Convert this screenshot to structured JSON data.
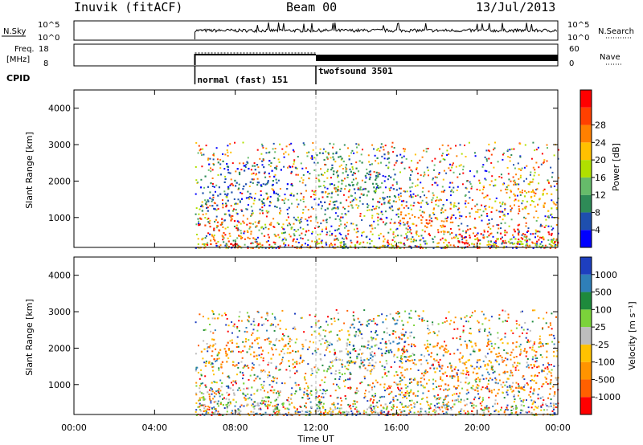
{
  "header": {
    "station": "Inuvik (fitACF)",
    "beam": "Beam 00",
    "date": "13/Jul/2013"
  },
  "noise_panel": {
    "left_label": "N.Sky",
    "left_ticks": [
      "10^5",
      "10^0"
    ],
    "right_ticks": [
      "10^5",
      "10^0"
    ],
    "right_label": "N.Search"
  },
  "freq_panel": {
    "left_label_line1": "Freq.",
    "left_label_line2": "[MHz]",
    "left_ticks": [
      "18",
      "8"
    ],
    "right_ticks": [
      "60",
      "0"
    ],
    "right_label": "Nave"
  },
  "cpid": {
    "label": "CPID",
    "segments": [
      {
        "name": "normal (fast) 151",
        "start_hour": 6,
        "end_hour": 12
      },
      {
        "name": "twofsound 3501",
        "start_hour": 12,
        "end_hour": 24
      }
    ]
  },
  "time_axis": {
    "label": "Time UT",
    "ticks": [
      "00:00",
      "04:00",
      "08:00",
      "12:00",
      "16:00",
      "20:00",
      "00:00"
    ]
  },
  "colors": {
    "power": [
      "#0000ff",
      "#1e4fae",
      "#2e8b57",
      "#66bb6a",
      "#b0e000",
      "#ffc000",
      "#ff8000",
      "#ff4000",
      "#ff0000"
    ],
    "velocity": [
      "#ff0000",
      "#ff6000",
      "#ff9400",
      "#ffc200",
      "#bdbdbd",
      "#7bd33a",
      "#1e8a3c",
      "#2f7fb8",
      "#1e3fbf"
    ]
  },
  "chart_data": [
    {
      "type": "heatmap",
      "panel": "power",
      "ylabel": "Slant Range [km]",
      "yticks": [
        "1000",
        "2000",
        "3000",
        "4000"
      ],
      "ylim": [
        180,
        4500
      ],
      "xlim_hours": [
        0,
        24
      ],
      "colorbar_label": "Power [dB]",
      "colorbar_ticks": [
        "4",
        "8",
        "12",
        "16",
        "20",
        "24",
        "28"
      ],
      "data_coverage_hours": [
        6,
        24
      ],
      "regions": [
        {
          "t0": 6.1,
          "t1": 8.2,
          "r0": 250,
          "r1": 1100,
          "level": 7
        },
        {
          "t0": 8.0,
          "t1": 10.0,
          "r0": 300,
          "r1": 900,
          "level": 6
        },
        {
          "t0": 6.2,
          "t1": 11.0,
          "r0": 1200,
          "r1": 2600,
          "level": 1
        },
        {
          "t0": 12.0,
          "t1": 16.0,
          "r0": 1200,
          "r1": 2800,
          "level": 2
        },
        {
          "t0": 13.0,
          "t1": 15.5,
          "r0": 1500,
          "r1": 2200,
          "level": 3
        },
        {
          "t0": 16.0,
          "t1": 19.0,
          "r0": 600,
          "r1": 1400,
          "level": 6
        },
        {
          "t0": 19.0,
          "t1": 24.0,
          "r0": 300,
          "r1": 700,
          "level": 8
        },
        {
          "t0": 20.0,
          "t1": 24.0,
          "r0": 1200,
          "r1": 2000,
          "level": 5
        },
        {
          "t0": 12.0,
          "t1": 24.0,
          "r0": 180,
          "r1": 450,
          "level": 4
        }
      ]
    },
    {
      "type": "heatmap",
      "panel": "velocity",
      "ylabel": "Slant Range [km]",
      "yticks": [
        "1000",
        "2000",
        "3000",
        "4000"
      ],
      "ylim": [
        180,
        4500
      ],
      "xlim_hours": [
        0,
        24
      ],
      "colorbar_label": "Velocity [m s⁻¹]",
      "colorbar_ticks": [
        "-1000",
        "-500",
        "-100",
        "-25",
        "25",
        "100",
        "500",
        "1000"
      ],
      "data_coverage_hours": [
        6,
        24
      ],
      "regions": [
        {
          "t0": 6.0,
          "t1": 9.5,
          "r0": 250,
          "r1": 1100,
          "level": 4
        },
        {
          "t0": 9.0,
          "t1": 12.5,
          "r0": 300,
          "r1": 900,
          "level": 5
        },
        {
          "t0": 6.2,
          "t1": 11.5,
          "r0": 1500,
          "r1": 2300,
          "level": 2
        },
        {
          "t0": 12.0,
          "t1": 15.0,
          "r0": 1300,
          "r1": 2500,
          "level": 4
        },
        {
          "t0": 13.5,
          "t1": 16.5,
          "r0": 1500,
          "r1": 2800,
          "level": 7
        },
        {
          "t0": 16.0,
          "t1": 24.0,
          "r0": 700,
          "r1": 2200,
          "level": 2
        },
        {
          "t0": 12.0,
          "t1": 24.0,
          "r0": 180,
          "r1": 500,
          "level": 4
        },
        {
          "t0": 12.5,
          "t1": 15.0,
          "r0": 200,
          "r1": 300,
          "level": 5
        }
      ]
    }
  ]
}
